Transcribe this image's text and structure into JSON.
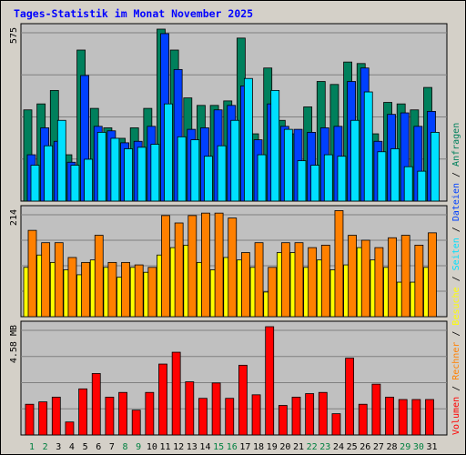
{
  "title": "Tages-Statistik im Monat November 2025",
  "colors": {
    "background": "#d4d0c8",
    "plot_background": "#c0c0c0",
    "title": "#0000ff",
    "anfragen": "#00805c",
    "dateien": "#0040ff",
    "seiten": "#00e0ff",
    "besuche": "#ffff00",
    "rechner": "#ff8000",
    "volumen": "#ff0000",
    "weekend_label": "#008040",
    "weekday_label": "#000000"
  },
  "legend": {
    "volumen": "Volumen",
    "rechner": "Rechner",
    "besuche": "Besuche",
    "seiten": "Seiten",
    "dateien": "Dateien",
    "anfragen": "Anfragen",
    "sep": "/"
  },
  "chart_data": [
    {
      "type": "bar",
      "panel": "hits",
      "ymax_label": "575",
      "ylim": [
        0,
        575
      ],
      "categories": [
        "1",
        "2",
        "3",
        "4",
        "5",
        "6",
        "7",
        "8",
        "9",
        "10",
        "11",
        "12",
        "13",
        "14",
        "15",
        "16",
        "17",
        "18",
        "19",
        "20",
        "21",
        "22",
        "23",
        "24",
        "25",
        "26",
        "27",
        "28",
        "29",
        "30",
        "31"
      ],
      "weekend_days": [
        1,
        2,
        8,
        9,
        15,
        16,
        22,
        23,
        29,
        30
      ],
      "series": [
        {
          "name": "Anfragen",
          "values": [
            305,
            325,
            370,
            155,
            505,
            310,
            245,
            210,
            245,
            310,
            575,
            505,
            345,
            320,
            320,
            335,
            545,
            225,
            445,
            270,
            225,
            315,
            400,
            390,
            465,
            460,
            225,
            330,
            325,
            305,
            380
          ]
        },
        {
          "name": "Dateien",
          "values": [
            155,
            245,
            200,
            130,
            420,
            250,
            235,
            195,
            200,
            250,
            560,
            440,
            240,
            245,
            305,
            320,
            385,
            205,
            325,
            250,
            240,
            230,
            245,
            250,
            400,
            445,
            200,
            290,
            295,
            250,
            300
          ]
        },
        {
          "name": "Seiten",
          "values": [
            120,
            185,
            270,
            120,
            140,
            230,
            210,
            175,
            180,
            190,
            325,
            215,
            205,
            150,
            185,
            270,
            410,
            155,
            370,
            240,
            135,
            120,
            155,
            150,
            270,
            365,
            165,
            175,
            115,
            100,
            230
          ]
        }
      ]
    },
    {
      "type": "bar",
      "panel": "visits",
      "ymax_label": "214",
      "ylim": [
        0,
        214
      ],
      "categories": [
        "1",
        "2",
        "3",
        "4",
        "5",
        "6",
        "7",
        "8",
        "9",
        "10",
        "11",
        "12",
        "13",
        "14",
        "15",
        "16",
        "17",
        "18",
        "19",
        "20",
        "21",
        "22",
        "23",
        "24",
        "25",
        "26",
        "27",
        "28",
        "29",
        "30",
        "31"
      ],
      "series": [
        {
          "name": "Besuche",
          "values": [
            100,
            125,
            110,
            95,
            85,
            115,
            100,
            80,
            100,
            90,
            125,
            140,
            145,
            110,
            95,
            120,
            115,
            100,
            50,
            130,
            130,
            100,
            115,
            95,
            105,
            140,
            115,
            100,
            70,
            70,
            100
          ]
        },
        {
          "name": "Rechner",
          "values": [
            175,
            150,
            150,
            120,
            110,
            165,
            110,
            110,
            105,
            100,
            205,
            190,
            205,
            210,
            210,
            200,
            130,
            150,
            100,
            150,
            150,
            140,
            145,
            215,
            165,
            155,
            140,
            160,
            165,
            145,
            170
          ]
        }
      ]
    },
    {
      "type": "bar",
      "panel": "volume",
      "ymax_label": "4.58 MB",
      "ylim": [
        0,
        4.58
      ],
      "categories": [
        "1",
        "2",
        "3",
        "4",
        "5",
        "6",
        "7",
        "8",
        "9",
        "10",
        "11",
        "12",
        "13",
        "14",
        "15",
        "16",
        "17",
        "18",
        "19",
        "20",
        "21",
        "22",
        "23",
        "24",
        "25",
        "26",
        "27",
        "28",
        "29",
        "30",
        "31"
      ],
      "series": [
        {
          "name": "Volumen",
          "values": [
            1.3,
            1.4,
            1.6,
            0.55,
            1.95,
            2.6,
            1.6,
            1.8,
            1.05,
            1.8,
            3.0,
            3.5,
            2.25,
            1.55,
            2.2,
            1.55,
            2.95,
            1.7,
            4.58,
            1.25,
            1.6,
            1.75,
            1.8,
            0.9,
            3.25,
            1.3,
            2.15,
            1.6,
            1.5,
            1.5,
            1.5
          ]
        }
      ]
    }
  ]
}
